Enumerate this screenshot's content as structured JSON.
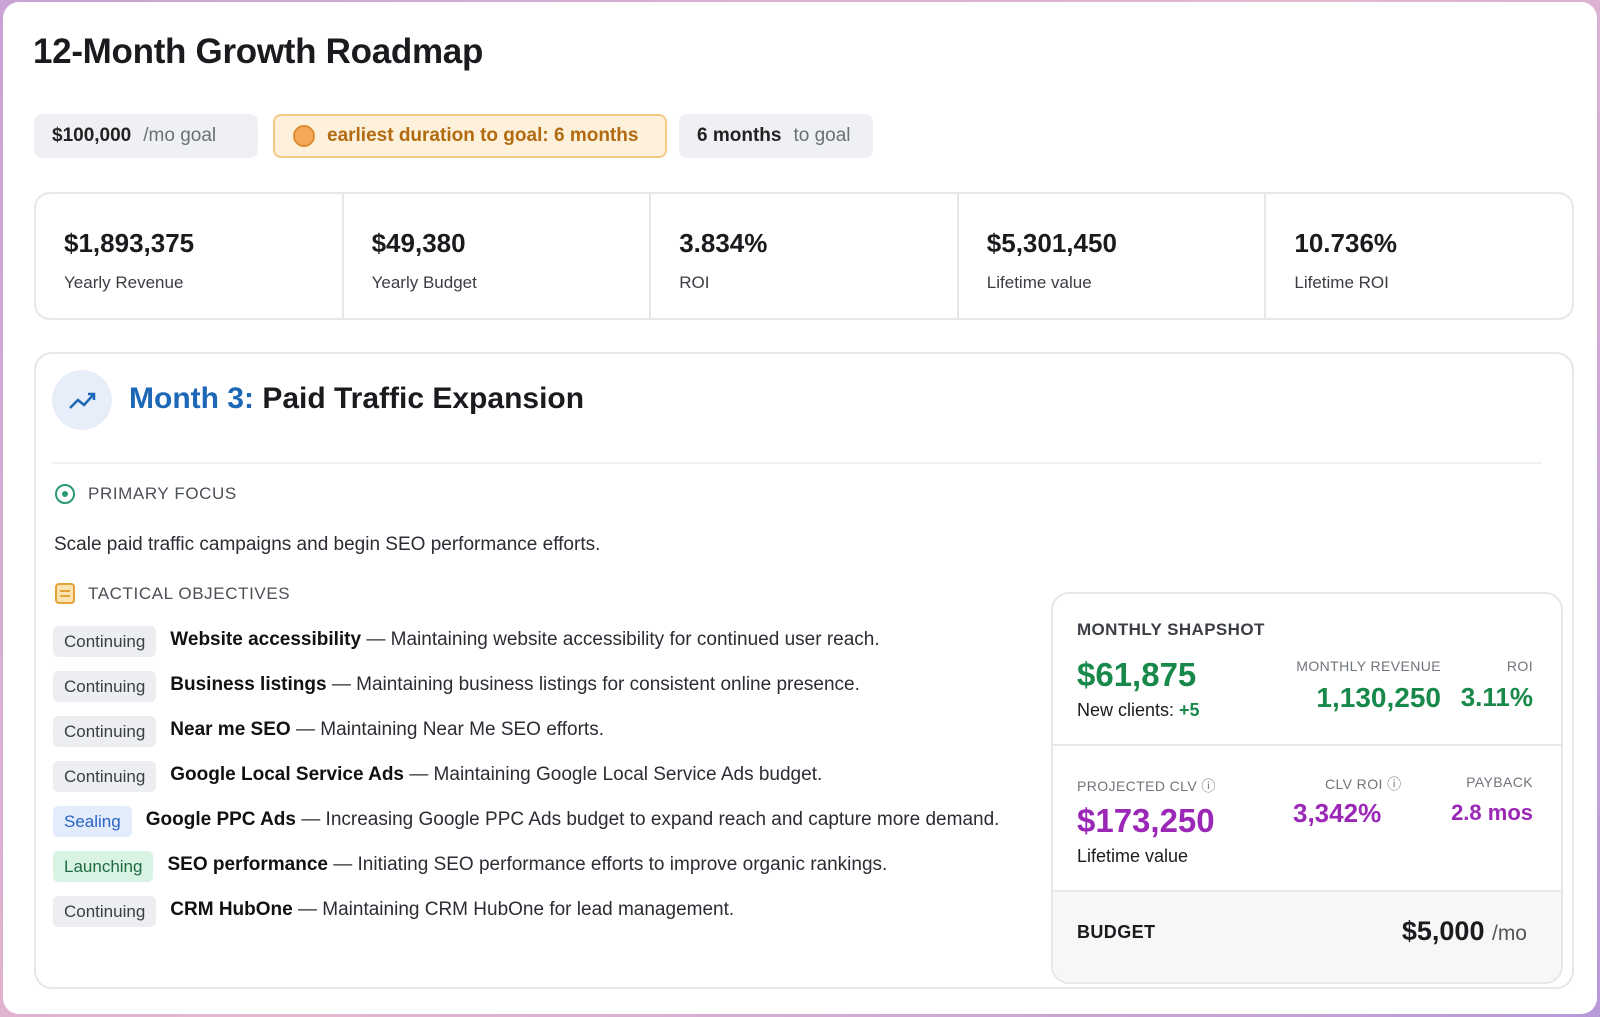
{
  "header": {
    "title": "12-Month Growth Roadmap"
  },
  "pills": {
    "goal": {
      "value": "$100,000",
      "suffix": "/mo goal"
    },
    "earliest": {
      "text": "earliest duration to goal: 6 months"
    },
    "months": {
      "value": "6 months",
      "suffix": "to goal"
    }
  },
  "stats": [
    {
      "value": "$1,893,375",
      "label": "Yearly Revenue"
    },
    {
      "value": "$49,380",
      "label": "Yearly Budget"
    },
    {
      "value": "3.834%",
      "label": "ROI"
    },
    {
      "value": "$5,301,450",
      "label": "Lifetime value"
    },
    {
      "value": "10.736%",
      "label": "Lifetime ROI"
    }
  ],
  "month": {
    "prefix": "Month 3:",
    "title": "Paid Traffic Expansion"
  },
  "focus": {
    "heading": "PRIMARY FOCUS",
    "text": "Scale paid traffic campaigns and begin SEO performance efforts."
  },
  "objectives": {
    "heading": "TACTICAL OBJECTIVES",
    "items": [
      {
        "status": "Continuing",
        "name": "Website accessibility",
        "desc": "— Maintaining website accessibility for continued user reach."
      },
      {
        "status": "Continuing",
        "name": "Business listings",
        "desc": "— Maintaining business listings for consistent online presence."
      },
      {
        "status": "Continuing",
        "name": "Near me SEO",
        "desc": "— Maintaining Near Me SEO efforts."
      },
      {
        "status": "Continuing",
        "name": "Google Local Service Ads",
        "desc": "— Maintaining Google Local Service Ads budget."
      },
      {
        "status": "Sealing",
        "name": "Google PPC Ads",
        "desc": "— Increasing Google PPC Ads budget to expand reach and capture more demand."
      },
      {
        "status": "Launching",
        "name": "SEO performance",
        "desc": "— Initiating SEO performance efforts to improve organic rankings."
      },
      {
        "status": "Continuing",
        "name": "CRM HubOne",
        "desc": "— Maintaining CRM HubOne for lead management."
      }
    ]
  },
  "snapshot": {
    "heading": "MONTHLY SHAPSHOT",
    "amount": "$61,875",
    "clients_label": "New clients:",
    "clients_value": "+5",
    "revenue_label": "MONTHLY REVENUE",
    "revenue_value": "1,130,250",
    "roi_label": "ROI",
    "roi_value": "3.11%",
    "clv_label": "PROJECTED CLV",
    "clv_value": "$173,250",
    "clv_sub": "Lifetime value",
    "clv_roi_label": "CLV ROI",
    "clv_roi_value": "3,342%",
    "payback_label": "PAYBACK",
    "payback_value": "2.8 mos",
    "budget_label": "BUDGET",
    "budget_value": "$5,000",
    "budget_suffix": "/mo"
  }
}
